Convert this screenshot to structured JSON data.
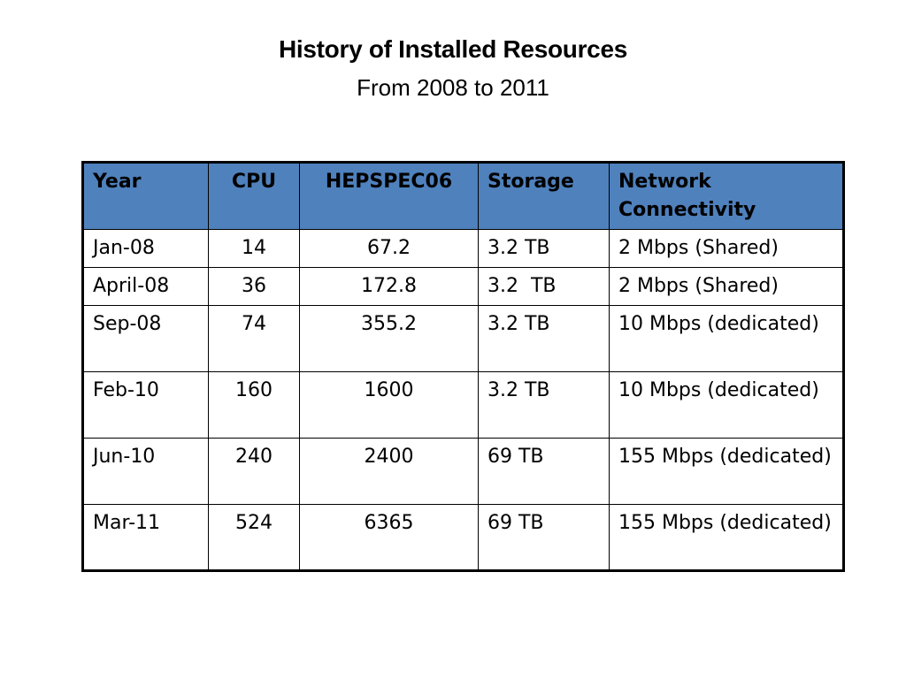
{
  "title": "History of Installed Resources",
  "subtitle": "From 2008 to 2011",
  "table": {
    "headers": {
      "year": "Year",
      "cpu": "CPU",
      "hepspec": "HEPSPEC06",
      "storage": "Storage",
      "network": "Network Connectivity"
    },
    "rows": [
      {
        "year": "Jan-08",
        "cpu": "14",
        "hepspec": "67.2",
        "storage": "3.2 TB",
        "network": "2 Mbps (Shared)"
      },
      {
        "year": "April-08",
        "cpu": "36",
        "hepspec": "172.8",
        "storage": "3.2  TB",
        "network": "2 Mbps (Shared)"
      },
      {
        "year": "Sep-08",
        "cpu": "74",
        "hepspec": "355.2",
        "storage": "3.2 TB",
        "network": "10 Mbps (dedicated)"
      },
      {
        "year": "Feb-10",
        "cpu": "160",
        "hepspec": "1600",
        "storage": "3.2 TB",
        "network": "10 Mbps (dedicated)"
      },
      {
        "year": "Jun-10",
        "cpu": "240",
        "hepspec": "2400",
        "storage": "69 TB",
        "network": "155 Mbps (dedicated)"
      },
      {
        "year": "Mar-11",
        "cpu": "524",
        "hepspec": "6365",
        "storage": "69 TB",
        "network": "155 Mbps (dedicated)"
      }
    ]
  },
  "colors": {
    "header_background": "#4f81bd",
    "border": "#000000",
    "text": "#000000",
    "background": "#ffffff"
  }
}
